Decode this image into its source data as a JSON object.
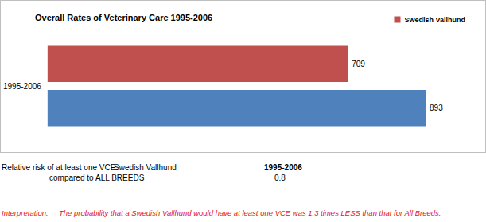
{
  "chart_data": {
    "type": "bar",
    "title": "Overall Rates of Veterinary Care 1995-2006",
    "orientation": "horizontal",
    "categories": [
      "1995-2006"
    ],
    "series": [
      {
        "name": "Swedish Vallhund",
        "color": "#c0504d",
        "values": [
          709
        ]
      },
      {
        "color": "#4f81bd",
        "values": [
          893
        ]
      }
    ],
    "xlim": [
      0,
      1000
    ],
    "data_labels": true,
    "legend": "top-right",
    "tick_labels": "y",
    "grid": false
  },
  "relative_risk": {
    "label": "Relative risk of at least one VCE :",
    "breed": "Swedish Vallhund",
    "compared_label": "compared to",
    "compared_to": "ALL BREEDS",
    "period": "1995-2006",
    "value": 0.8
  },
  "interpretation": {
    "label": "Interpretation:",
    "text": "The probability that a Swedish Vallhund  would have at least one VCE was 1.3 times LESS than that for All Breeds."
  }
}
